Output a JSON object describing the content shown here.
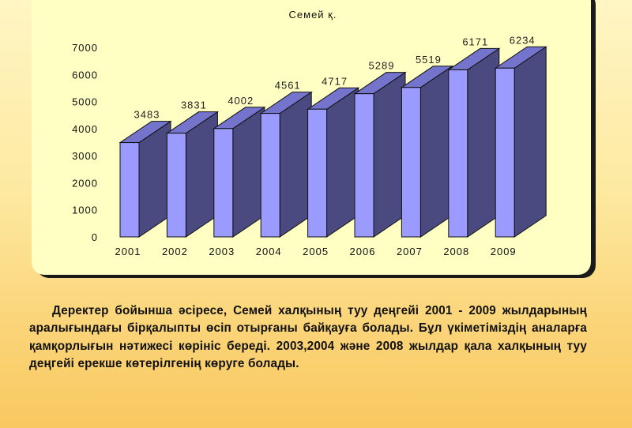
{
  "chart_data": {
    "type": "bar",
    "style": "3d-column",
    "title": "Семей қ.",
    "xlabel": "",
    "ylabel": "",
    "categories": [
      "2001",
      "2002",
      "2003",
      "2004",
      "2005",
      "2006",
      "2007",
      "2008",
      "2009"
    ],
    "values": [
      3483,
      3831,
      4002,
      4561,
      4717,
      5289,
      5519,
      6171,
      6234
    ],
    "data_labels": [
      "3483",
      "3831",
      "4002",
      "4561",
      "4717",
      "5289",
      "5519",
      "6171",
      "6234"
    ],
    "yticks": [
      "0",
      "1000",
      "2000",
      "3000",
      "4000",
      "5000",
      "6000",
      "7000"
    ],
    "ylim": [
      0,
      7000
    ],
    "grid": false,
    "legend": "none",
    "colors": {
      "front": "#9a9aff",
      "side": "#4a4a80",
      "top": "#7474cc",
      "panel": "#ffffc4"
    }
  },
  "text": {
    "paragraph": "Деректер бойынша әсіресе, Семей халқының туу деңгейі 2001 - 2009 жылдарының  аралығындағы бірқалыпты өсіп отырғаны байқауға болады. Бұл үкіметіміздің аналарға қамқорлығын нәтижесі көрініс береді. 2003,2004 және 2008 жылдар қала халқының туу деңгейі ерекше көтерілгенің көруге болады."
  }
}
